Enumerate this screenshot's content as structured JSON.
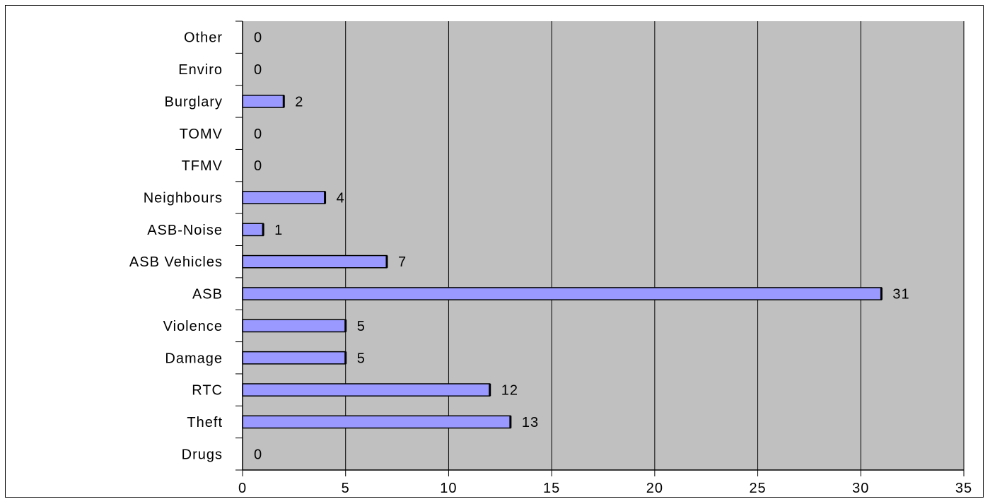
{
  "chart_data": {
    "type": "bar",
    "orientation": "horizontal",
    "categories": [
      "Drugs",
      "Theft",
      "RTC",
      "Damage",
      "Violence",
      "ASB",
      "ASB Vehicles",
      "ASB-Noise",
      "Neighbours",
      "TFMV",
      "TOMV",
      "Burglary",
      "Enviro",
      "Other"
    ],
    "values": [
      0,
      13,
      12,
      5,
      5,
      31,
      7,
      1,
      4,
      0,
      0,
      2,
      0,
      0
    ],
    "data_labels": [
      "0",
      "13",
      "12",
      "5",
      "5",
      "31",
      "7",
      "1",
      "4",
      "0",
      "0",
      "2",
      "0",
      "0"
    ],
    "x_ticks": [
      "0",
      "5",
      "10",
      "15",
      "20",
      "25",
      "30",
      "35"
    ],
    "xlim": [
      0,
      35
    ],
    "title": "",
    "xlabel": "",
    "ylabel": "",
    "grid": "vertical",
    "legend": "none",
    "colors": {
      "bar": "#9999ff",
      "bar_stroke": "#000000",
      "plot_bg": "#c0c0c0",
      "grid": "#000000"
    }
  }
}
